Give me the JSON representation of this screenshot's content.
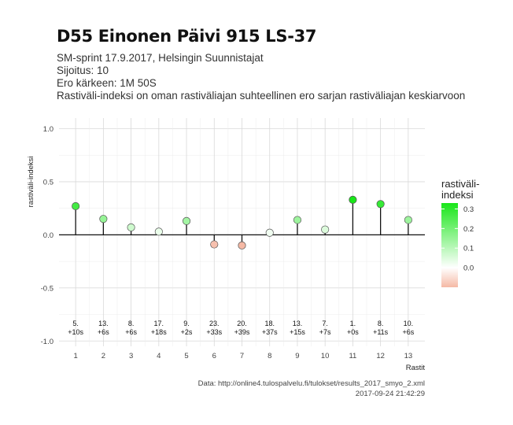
{
  "header": {
    "title": "D55 Einonen Päivi 915 LS-37",
    "subtitle_lines": [
      "SM-sprint 17.9.2017, Helsingin Suunnistajat",
      "Sijoitus: 10",
      "Ero kärkeen: 1M 50S",
      "Rastiväli-indeksi on oman rastiväliajan suhteellinen ero sarjan rastiväliajan keskiarvoon"
    ]
  },
  "footer": {
    "source": "Data: http://online4.tulospalvelu.fi/tulokset/results_2017_smyo_2.xml",
    "timestamp": "2017-09-24 21:42:29"
  },
  "chart_data": {
    "type": "scatter",
    "style": "lollipop",
    "xlabel": "Rastit",
    "ylabel": "rastiväli-indeksi",
    "x": [
      1,
      2,
      3,
      4,
      5,
      6,
      7,
      8,
      9,
      10,
      11,
      12,
      13
    ],
    "values": [
      0.27,
      0.15,
      0.07,
      0.03,
      0.13,
      -0.09,
      -0.1,
      0.02,
      0.14,
      0.05,
      0.33,
      0.29,
      0.14
    ],
    "point_labels": [
      [
        "5.",
        "+10s"
      ],
      [
        "13.",
        "+6s"
      ],
      [
        "8.",
        "+6s"
      ],
      [
        "17.",
        "+18s"
      ],
      [
        "9.",
        "+2s"
      ],
      [
        "23.",
        "+33s"
      ],
      [
        "20.",
        "+39s"
      ],
      [
        "18.",
        "+37s"
      ],
      [
        "13.",
        "+15s"
      ],
      [
        "7.",
        "+7s"
      ],
      [
        "1.",
        "+0s"
      ],
      [
        "8.",
        "+11s"
      ],
      [
        "10.",
        "+6s"
      ]
    ],
    "xticks": [
      "1",
      "2",
      "3",
      "4",
      "5",
      "6",
      "7",
      "8",
      "9",
      "10",
      "11",
      "12",
      "13"
    ],
    "yticks": [
      "-1.0",
      "-0.5",
      "0.0",
      "0.5",
      "1.0"
    ],
    "ylim": [
      -1.05,
      1.1
    ],
    "xlim": [
      0.4,
      13.6
    ],
    "grid": true,
    "legend": {
      "title_lines": [
        "rastiväli-",
        "indeksi"
      ],
      "ticks": [
        "0.3",
        "0.2",
        "0.1",
        "0.0"
      ],
      "tick_values": [
        0.3,
        0.2,
        0.1,
        0.0
      ],
      "range": [
        -0.1,
        0.33
      ],
      "placement": "right",
      "colors": {
        "low": "#f5b9a5",
        "mid": "#ffffff",
        "high": "#19e619"
      }
    }
  }
}
